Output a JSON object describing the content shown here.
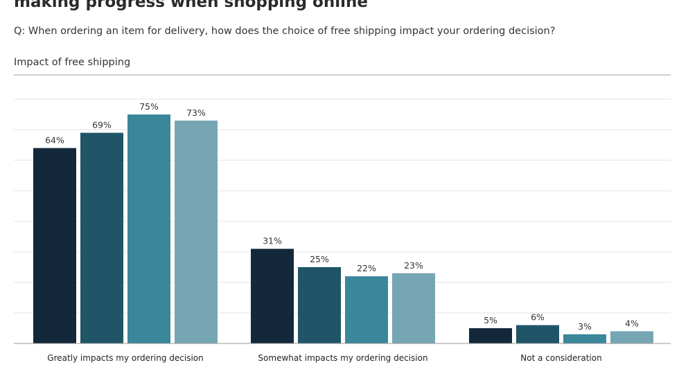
{
  "title": "making progress when shopping online",
  "question": "Q: When ordering an item for delivery, how does the choice of free shipping impact your ordering decision?",
  "subtitle": "Impact of free shipping",
  "colors": [
    "#13283b",
    "#1f5567",
    "#3a879a",
    "#76a6b3"
  ],
  "chart_data": {
    "type": "bar",
    "title": "Impact of free shipping",
    "categories": [
      "Greatly impacts my ordering decision",
      "Somewhat impacts my ordering decision",
      "Not a consideration"
    ],
    "series": [
      {
        "values": [
          64,
          31,
          5
        ]
      },
      {
        "values": [
          69,
          25,
          6
        ]
      },
      {
        "values": [
          75,
          22,
          3
        ]
      },
      {
        "values": [
          73,
          23,
          4
        ]
      }
    ],
    "data_labels": [
      [
        "64%",
        "31%",
        "5%"
      ],
      [
        "69%",
        "25%",
        "6%"
      ],
      [
        "75%",
        "22%",
        "3%"
      ],
      [
        "73%",
        "23%",
        "4%"
      ]
    ],
    "ylim": [
      0,
      80
    ],
    "grid": true,
    "legend": "none"
  }
}
